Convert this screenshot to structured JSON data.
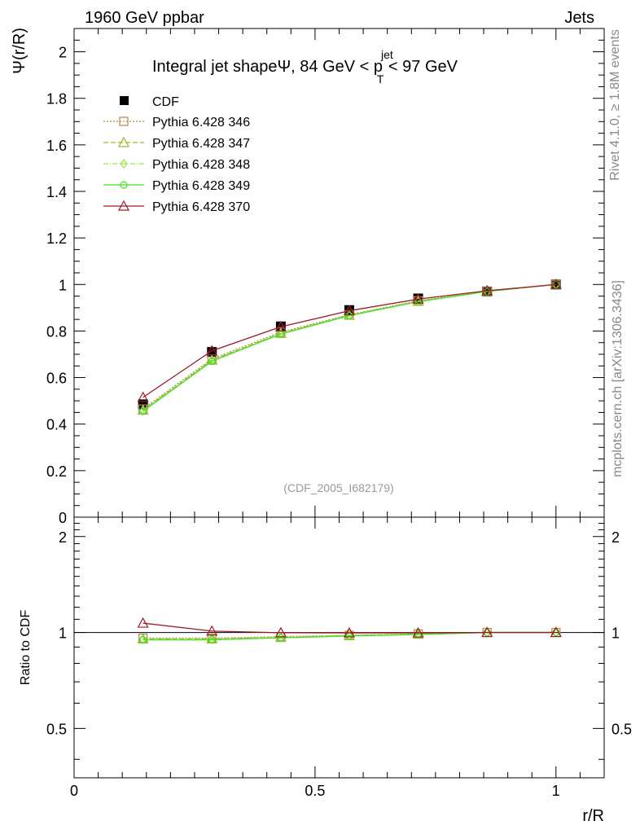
{
  "header": {
    "left": "1960 GeV ppbar",
    "right": "Jets"
  },
  "side_labels": {
    "rivet": "Rivet 4.1.0, ≥ 1.8M events",
    "mcplots": "mcplots.cern.ch [arXiv:1306.3436]"
  },
  "chart_data": {
    "type": "line",
    "title_prefix": "Integral jet shapeΨ, 84 GeV < p",
    "title_sup": "jet",
    "title_sub": "T",
    "title_suffix": " < 97 GeV",
    "watermark": "(CDF_2005_I682179)",
    "xlabel": "r/R",
    "ylabel": "Ψ(r/R)",
    "ratio_ylabel": "Ratio to CDF",
    "xlim": [
      0,
      1.1
    ],
    "ylim": [
      0,
      2.1
    ],
    "ratio_ylim": [
      0.35,
      2.3
    ],
    "x_ticks": [
      "0",
      "0.5",
      "1"
    ],
    "x_tick_values": [
      0,
      0.5,
      1
    ],
    "y_ticks": [
      "0",
      "0.2",
      "0.4",
      "0.6",
      "0.8",
      "1",
      "1.2",
      "1.4",
      "1.6",
      "1.8",
      "2"
    ],
    "y_tick_values": [
      0,
      0.2,
      0.4,
      0.6,
      0.8,
      1.0,
      1.2,
      1.4,
      1.6,
      1.8,
      2.0
    ],
    "ratio_ticks": [
      "0.5",
      "1",
      "2"
    ],
    "ratio_tick_values": [
      0.5,
      1,
      2
    ],
    "x": [
      0.143,
      0.286,
      0.429,
      0.571,
      0.714,
      0.857,
      1.0
    ],
    "data": {
      "name": "CDF",
      "values": [
        0.485,
        0.71,
        0.82,
        0.89,
        0.94,
        0.97,
        1.0
      ]
    },
    "series": [
      {
        "name": "Pythia 6.428 346",
        "color": "#b8864e",
        "marker": "square",
        "dash": "2,2",
        "values": [
          0.465,
          0.68,
          0.795,
          0.87,
          0.93,
          0.97,
          1.0
        ],
        "ratio": [
          0.96,
          0.96,
          0.97,
          0.98,
          0.99,
          1.0,
          1.0
        ]
      },
      {
        "name": "Pythia 6.428 347",
        "color": "#9aba2a",
        "marker": "triangle",
        "dash": "6,3",
        "values": [
          0.46,
          0.675,
          0.79,
          0.868,
          0.928,
          0.97,
          1.0
        ],
        "ratio": [
          0.955,
          0.955,
          0.965,
          0.978,
          0.988,
          1.0,
          1.0
        ]
      },
      {
        "name": "Pythia 6.428 348",
        "color": "#99e54d",
        "marker": "diamond",
        "dash": "6,2,1,2",
        "values": [
          0.458,
          0.673,
          0.789,
          0.867,
          0.927,
          0.97,
          1.0
        ],
        "ratio": [
          0.952,
          0.952,
          0.963,
          0.976,
          0.986,
          1.0,
          1.0
        ]
      },
      {
        "name": "Pythia 6.428 349",
        "color": "#44e01e",
        "marker": "circle",
        "dash": "",
        "values": [
          0.455,
          0.67,
          0.787,
          0.866,
          0.926,
          0.97,
          1.0
        ],
        "ratio": [
          0.948,
          0.948,
          0.962,
          0.975,
          0.985,
          1.0,
          1.0
        ]
      },
      {
        "name": "Pythia 6.428 370",
        "color": "#9c1a2a",
        "marker": "triangle",
        "dash": "",
        "values": [
          0.515,
          0.715,
          0.818,
          0.887,
          0.937,
          0.973,
          1.0
        ],
        "ratio": [
          1.07,
          1.01,
          0.998,
          0.997,
          0.997,
          1.0,
          1.0
        ]
      }
    ]
  }
}
